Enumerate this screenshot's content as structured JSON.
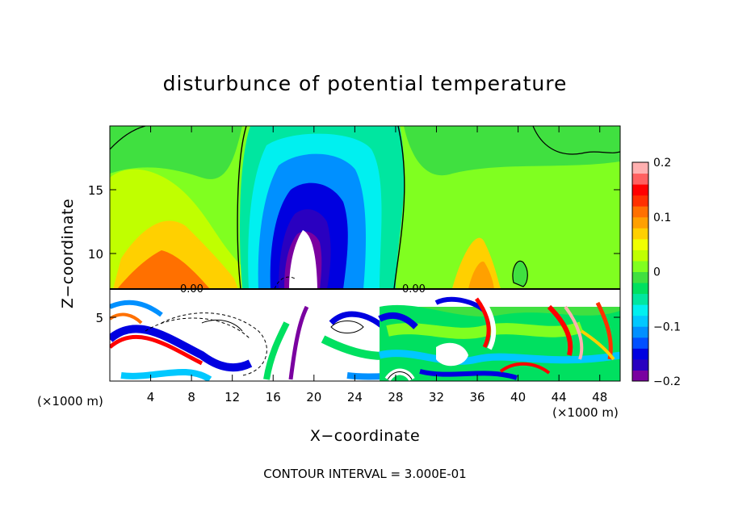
{
  "chart_data": {
    "type": "heatmap",
    "title": "disturbunce of potential temperature",
    "xlabel": "X−coordinate",
    "ylabel": "Z−coordinate",
    "x_unit_label": "(×1000 m)",
    "z_unit_label": "(×1000 m)",
    "xlim": [
      0,
      50
    ],
    "ylim": [
      0,
      20
    ],
    "x_ticks": [
      4,
      8,
      12,
      16,
      20,
      24,
      28,
      32,
      36,
      40,
      44,
      48
    ],
    "x_tick_labels": [
      "4",
      "8",
      "12",
      "16",
      "20",
      "24",
      "28",
      "32",
      "36",
      "40",
      "44",
      "48"
    ],
    "y_ticks": [
      5,
      10,
      15
    ],
    "y_tick_labels": [
      "5",
      "10",
      "15"
    ],
    "contour_labels": [
      "0.00",
      "0.00"
    ],
    "colorbar": {
      "range": [
        -0.2,
        0.2
      ],
      "tick_values": [
        0.2,
        0.1,
        0,
        -0.1,
        -0.2
      ],
      "tick_labels": [
        "0.2",
        "0.1",
        "0",
        "−0.1",
        "−0.2"
      ],
      "colors": [
        "#7a00a0",
        "#2a00c0",
        "#0000e0",
        "#0050ff",
        "#0090ff",
        "#00c8ff",
        "#00f0f0",
        "#00e6a0",
        "#00e060",
        "#40e040",
        "#80ff20",
        "#c0ff00",
        "#f0ff00",
        "#ffd000",
        "#ffa000",
        "#ff7000",
        "#ff3000",
        "#ff0000",
        "#ff6060",
        "#ffb0b0"
      ]
    },
    "contour_interval_text": "CONTOUR INTERVAL = 3.000E-01",
    "grid": false
  }
}
